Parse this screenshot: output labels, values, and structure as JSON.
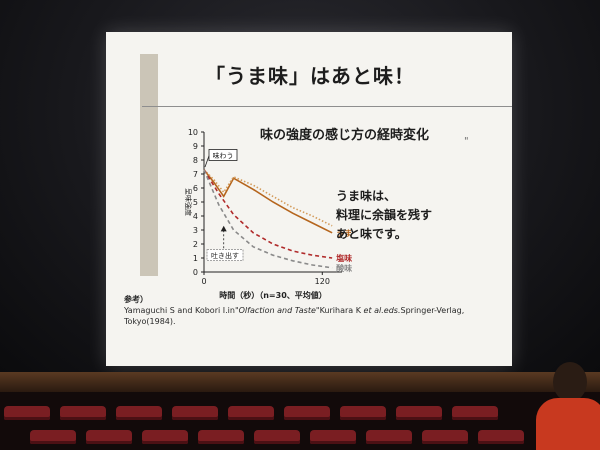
{
  "slide": {
    "title": "「うま味」はあと味！",
    "chart_title": "味の強度の感じ方の経時変化",
    "quote_mark": "\"",
    "callout_lines": [
      "うま味は、",
      "料理に余韻を残す",
      "あと味です。"
    ],
    "reference": {
      "label": "参考）",
      "line1_pre": "Yamaguchi S and Kobori I.in\"",
      "line1_italic": "Olfaction and Taste",
      "line1_mid": "\"Kurihara K ",
      "line1_italic2": "et al.eds.",
      "line1_post": "Springer-Verlag,",
      "line2": "Tokyo(1984)."
    }
  },
  "chart_data": {
    "type": "line",
    "ylabel": "呈味強度",
    "xlabel": "時間（秒）（n=30、平均値）",
    "y_ticks": [
      "0",
      "1",
      "2",
      "3",
      "4",
      "5",
      "6",
      "7",
      "8",
      "9",
      "10"
    ],
    "x_ticks": [
      "0",
      "120"
    ],
    "xlim": [
      0,
      140
    ],
    "ylim": [
      0,
      10
    ],
    "annotations": [
      {
        "text": "味わう"
      },
      {
        "text": "吐き出す"
      }
    ],
    "series": [
      {
        "name": "うま味",
        "color": "#b5651d",
        "style": "solid",
        "x": [
          0,
          10,
          20,
          30,
          50,
          70,
          90,
          110,
          130
        ],
        "y": [
          7.3,
          6.4,
          5.4,
          6.7,
          5.9,
          5.0,
          4.2,
          3.5,
          2.8
        ]
      },
      {
        "name": "",
        "color": "#d39b5a",
        "style": "dotted",
        "x": [
          0,
          10,
          20,
          30,
          50,
          70,
          90,
          110,
          130
        ],
        "y": [
          7.3,
          6.6,
          5.7,
          6.8,
          6.2,
          5.4,
          4.6,
          4.0,
          3.3
        ]
      },
      {
        "name": "塩味",
        "color": "#b02a2a",
        "style": "dashed",
        "x": [
          0,
          15,
          30,
          50,
          70,
          90,
          110,
          130
        ],
        "y": [
          7.3,
          5.6,
          4.1,
          2.8,
          2.0,
          1.5,
          1.2,
          1.0
        ]
      },
      {
        "name": "酸味",
        "color": "#8a8a8a",
        "style": "dashed",
        "x": [
          0,
          15,
          30,
          50,
          70,
          90,
          110,
          130
        ],
        "y": [
          7.3,
          4.8,
          3.0,
          1.8,
          1.2,
          0.8,
          0.5,
          0.3
        ]
      }
    ]
  }
}
